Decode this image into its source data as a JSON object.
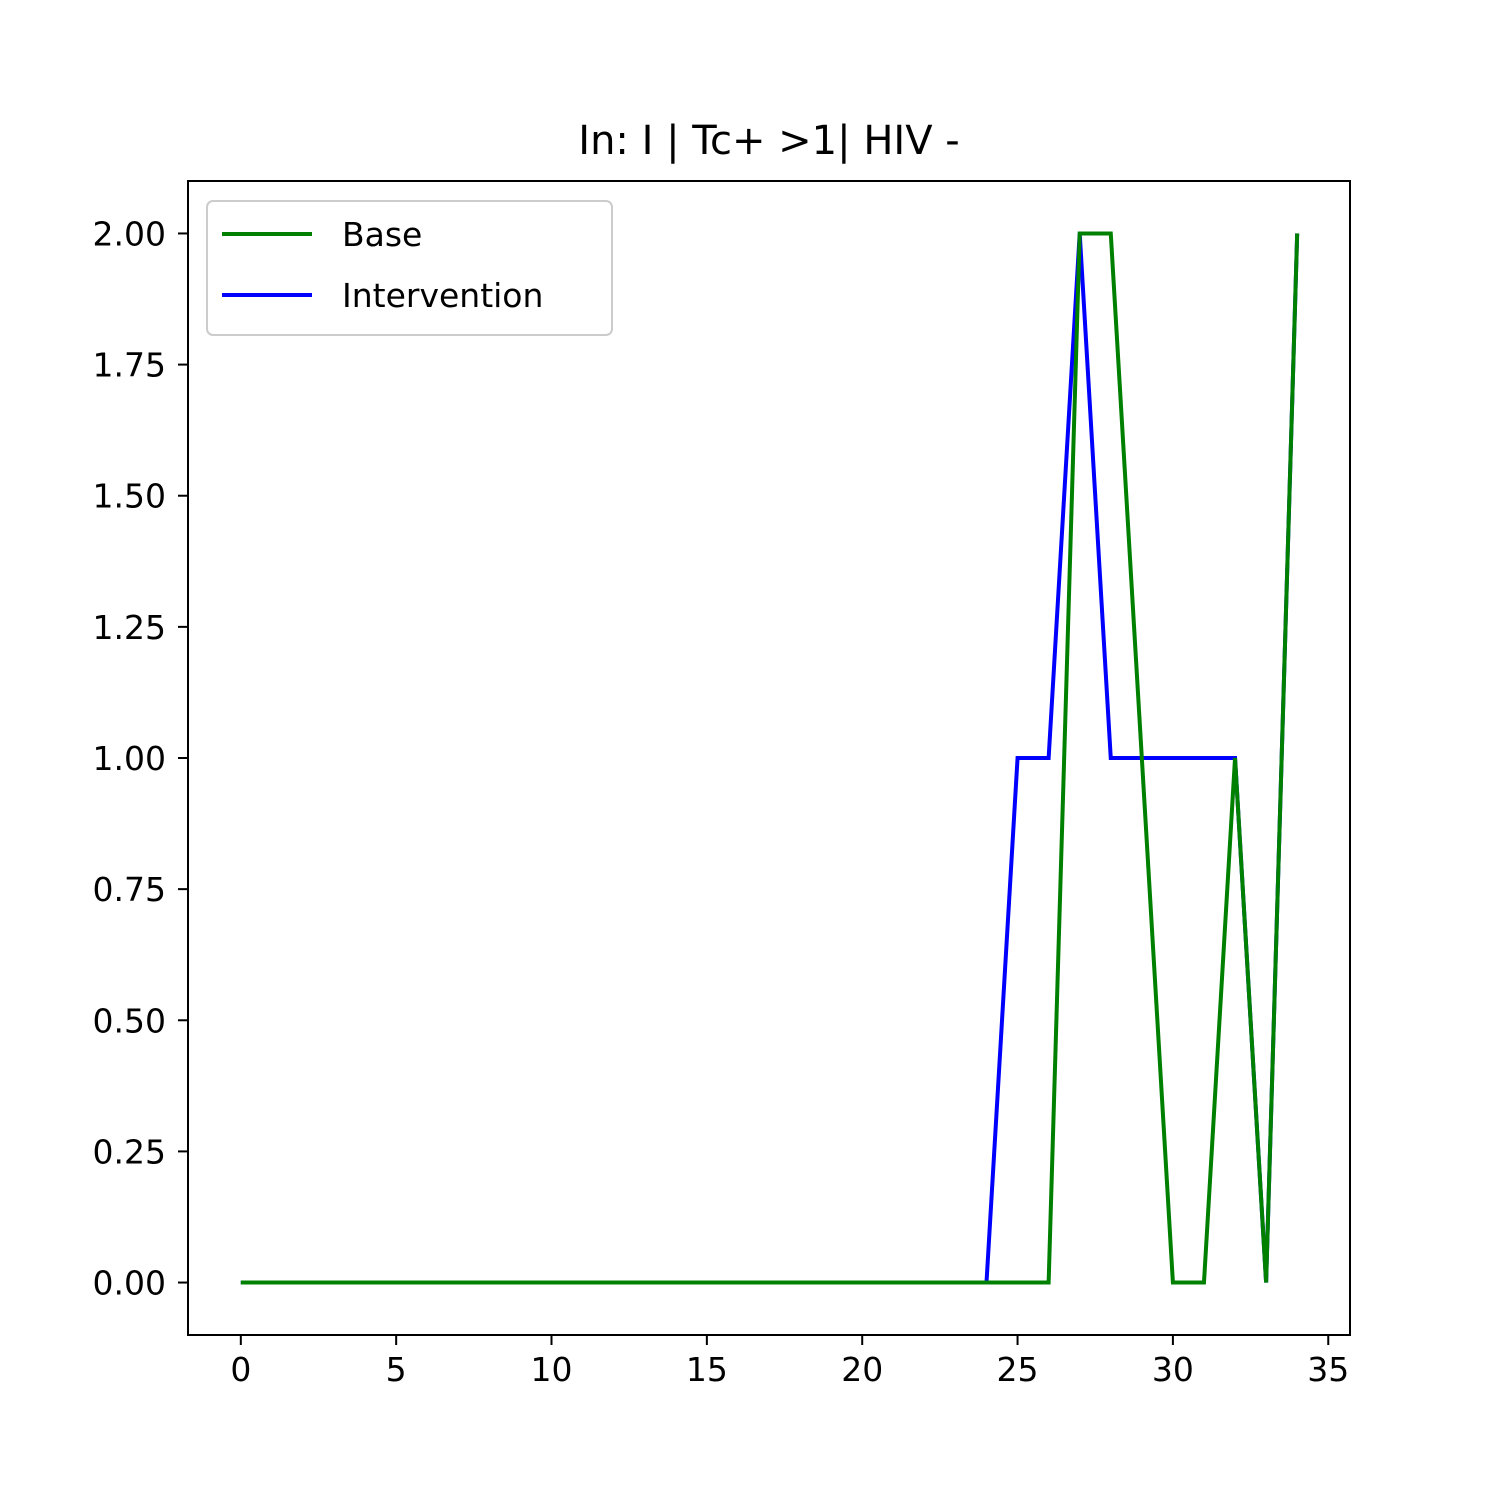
{
  "chart_data": {
    "type": "line",
    "title": "In: I | Tc+ >1| HIV -",
    "xlabel": "",
    "ylabel": "",
    "xlim": [
      -1.7,
      35.7
    ],
    "ylim": [
      -0.1,
      2.1
    ],
    "xticks": [
      "0",
      "5",
      "10",
      "15",
      "20",
      "25",
      "30",
      "35"
    ],
    "yticks": [
      "0.00",
      "0.25",
      "0.50",
      "0.75",
      "1.00",
      "1.25",
      "1.50",
      "1.75",
      "2.00"
    ],
    "grid": false,
    "legend_position": "top-left",
    "x": [
      0,
      1,
      2,
      3,
      4,
      5,
      6,
      7,
      8,
      9,
      10,
      11,
      12,
      13,
      14,
      15,
      16,
      17,
      18,
      19,
      20,
      21,
      22,
      23,
      24,
      25,
      26,
      27,
      28,
      29,
      30,
      31,
      32,
      33,
      34
    ],
    "series": [
      {
        "name": "Base",
        "color": "#008000",
        "values": [
          0,
          0,
          0,
          0,
          0,
          0,
          0,
          0,
          0,
          0,
          0,
          0,
          0,
          0,
          0,
          0,
          0,
          0,
          0,
          0,
          0,
          0,
          0,
          0,
          0,
          0,
          0,
          2,
          2,
          1,
          0,
          0,
          1,
          0,
          2
        ]
      },
      {
        "name": "Intervention",
        "color": "#0000ff",
        "values": [
          0,
          0,
          0,
          0,
          0,
          0,
          0,
          0,
          0,
          0,
          0,
          0,
          0,
          0,
          0,
          0,
          0,
          0,
          0,
          0,
          0,
          0,
          0,
          0,
          0,
          1,
          1,
          2,
          1,
          1,
          1,
          1,
          1,
          0,
          2
        ]
      }
    ]
  }
}
